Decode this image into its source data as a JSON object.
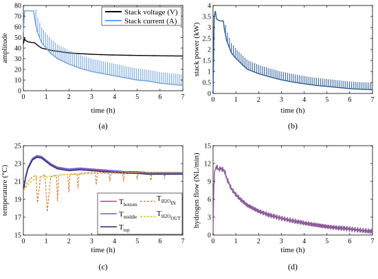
{
  "figure": {
    "panels": [
      "(a)",
      "(b)",
      "(c)",
      "(d)"
    ]
  },
  "chart_data": [
    {
      "panel": "(a)",
      "type": "line",
      "xlabel": "time (h)",
      "ylabel": "amplitude",
      "xlim": [
        0,
        7
      ],
      "ylim": [
        0,
        80
      ],
      "xticks": [
        0,
        1,
        2,
        3,
        4,
        5,
        6,
        7
      ],
      "yticks": [
        0,
        10,
        20,
        30,
        40,
        50,
        60,
        70,
        80
      ],
      "grid": false,
      "legend_position": "top-right",
      "series": [
        {
          "name": "Stack voltage (V)",
          "color": "#000000",
          "x": [
            0,
            0.05,
            0.1,
            0.2,
            0.3,
            0.5,
            0.6,
            0.8,
            1.0,
            1.2,
            1.5,
            2.0,
            2.5,
            3.0,
            3.5,
            4.0,
            4.5,
            5.0,
            5.5,
            6.0,
            6.5,
            7.0
          ],
          "y": [
            44,
            49,
            47,
            46,
            45.5,
            45,
            43,
            40,
            39,
            38,
            37,
            35.5,
            34.8,
            34.2,
            33.8,
            33.5,
            33.3,
            33.1,
            33,
            32.8,
            32.7,
            32.6
          ]
        },
        {
          "name": "Stack current (A)",
          "color": "#6f9fd8",
          "x": [
            0,
            0.05,
            0.1,
            0.2,
            0.3,
            0.45,
            0.5,
            0.6,
            0.8,
            1.0,
            1.2,
            1.5,
            2.0,
            2.5,
            3.0,
            3.5,
            4.0,
            4.5,
            5.0,
            5.5,
            6.0,
            6.5,
            7.0
          ],
          "y": [
            55,
            75,
            75,
            75,
            75,
            75,
            67,
            56,
            45,
            40,
            35,
            30,
            25,
            21,
            18,
            16,
            14,
            12,
            10,
            9,
            7,
            6,
            5
          ],
          "spike_peak_offset": 16
        }
      ]
    },
    {
      "panel": "(b)",
      "type": "line",
      "xlabel": "time (h)",
      "ylabel": "stack power (kW)",
      "xlim": [
        0,
        7
      ],
      "ylim": [
        0,
        4
      ],
      "xticks": [
        0,
        1,
        2,
        3,
        4,
        5,
        6,
        7
      ],
      "yticks": [
        0,
        0.5,
        1,
        1.5,
        2,
        2.5,
        3,
        3.5,
        4
      ],
      "grid": false,
      "series": [
        {
          "color": "#2a5a93",
          "x": [
            0,
            0.05,
            0.1,
            0.15,
            0.2,
            0.3,
            0.45,
            0.5,
            0.6,
            0.8,
            1.0,
            1.2,
            1.5,
            2.0,
            2.5,
            3.0,
            3.5,
            4.0,
            4.5,
            5.0,
            5.5,
            6.0,
            6.5,
            7.0
          ],
          "y": [
            0,
            3.5,
            3.75,
            3.4,
            3.35,
            3.3,
            3.3,
            2.9,
            2.4,
            1.85,
            1.6,
            1.4,
            1.1,
            0.9,
            0.75,
            0.62,
            0.52,
            0.44,
            0.37,
            0.32,
            0.27,
            0.22,
            0.19,
            0.17
          ],
          "spike_peak_offset": 0.5
        }
      ]
    },
    {
      "panel": "(c)",
      "type": "line",
      "xlabel": "time (h)",
      "ylabel": "temperature (°C)",
      "xlim": [
        0,
        7
      ],
      "ylim": [
        15,
        25
      ],
      "xticks": [
        0,
        1,
        2,
        3,
        4,
        5,
        6,
        7
      ],
      "yticks": [
        15,
        17,
        19,
        21,
        23,
        25
      ],
      "grid": false,
      "legend_position": "bottom-right",
      "series": [
        {
          "name_main": "T",
          "name_sub": "bottom",
          "color": "#9b4f96",
          "dash": "solid",
          "x": [
            0,
            0.1,
            0.2,
            0.4,
            0.6,
            0.8,
            1.0,
            1.2,
            1.5,
            2.0,
            2.5,
            3.0,
            3.5,
            4.0,
            4.5,
            5.0,
            5.5,
            6.0,
            6.5,
            7.0
          ],
          "y": [
            20,
            21.5,
            22.5,
            23.5,
            23.8,
            23.7,
            23.3,
            22.9,
            22.5,
            22.3,
            22.4,
            22.3,
            22.2,
            22.1,
            22.0,
            22.0,
            21.9,
            21.9,
            21.9,
            21.9
          ]
        },
        {
          "name_main": "T",
          "name_sub": "middle",
          "color": "#6b5bd3",
          "dash": "solid",
          "x": [
            0,
            0.1,
            0.2,
            0.4,
            0.6,
            0.8,
            1.0,
            1.2,
            1.5,
            2.0,
            2.5,
            3.0,
            3.5,
            4.0,
            4.5,
            5.0,
            5.5,
            6.0,
            6.5,
            7.0
          ],
          "y": [
            20,
            21.6,
            22.6,
            23.6,
            23.9,
            23.8,
            23.4,
            23.0,
            22.6,
            22.4,
            22.5,
            22.4,
            22.3,
            22.2,
            22.1,
            22.1,
            22.0,
            22.0,
            22.0,
            22.0
          ]
        },
        {
          "name_main": "T",
          "name_sub": "top",
          "color": "#1f2a6b",
          "dash": "solid",
          "x": [
            0,
            0.1,
            0.2,
            0.4,
            0.6,
            0.8,
            1.0,
            1.2,
            1.5,
            2.0,
            2.5,
            3.0,
            3.5,
            4.0,
            4.5,
            5.0,
            5.5,
            6.0,
            6.5,
            7.0
          ],
          "y": [
            20,
            21.4,
            22.4,
            23.4,
            23.7,
            23.6,
            23.2,
            22.8,
            22.4,
            22.2,
            22.3,
            22.2,
            22.1,
            22.0,
            21.9,
            21.9,
            21.8,
            21.8,
            21.8,
            21.8
          ]
        },
        {
          "name_main": "T",
          "name_sub": "H2O",
          "name_sub2": "IN",
          "color": "#c9751e",
          "dash": "dashed",
          "x": [
            0,
            0.2,
            0.4,
            0.55,
            0.62,
            0.75,
            0.95,
            1.05,
            1.2,
            1.5,
            2.0,
            2.5,
            3.0,
            3.5,
            4.0,
            4.5,
            5.0,
            5.5,
            6.0,
            6.5,
            7.0
          ],
          "y": [
            20,
            21.0,
            21.5,
            21.7,
            18.5,
            21.5,
            21.8,
            17.6,
            21.5,
            21.7,
            21.8,
            21.9,
            22.0,
            22.0,
            22.0,
            22.0,
            22.0,
            22.0,
            22.0,
            22.0,
            22.0
          ],
          "dips": [
            [
              1.5,
              18.8
            ],
            [
              2.0,
              19.8
            ],
            [
              2.4,
              20.2
            ],
            [
              3.2,
              20.6
            ],
            [
              3.8,
              21.0
            ],
            [
              4.4,
              21.0
            ],
            [
              5.0,
              21.2
            ],
            [
              5.6,
              21.1
            ],
            [
              6.2,
              21.3
            ]
          ]
        },
        {
          "name_main": "T",
          "name_sub": "H2O",
          "name_sub2": "OUT",
          "color": "#c8b400",
          "dash": "dashed",
          "x": [
            0,
            0.2,
            0.4,
            0.6,
            0.8,
            1.0,
            1.2,
            1.5,
            2.0,
            2.5,
            3.0,
            3.5,
            4.0,
            4.5,
            5.0,
            5.5,
            6.0,
            6.5,
            7.0
          ],
          "y": [
            20,
            20.6,
            21.1,
            21.4,
            21.5,
            21.5,
            21.6,
            21.7,
            21.8,
            21.8,
            21.9,
            21.9,
            21.9,
            21.9,
            22.0,
            22.0,
            22.0,
            22.0,
            22.0
          ]
        }
      ]
    },
    {
      "panel": "(d)",
      "type": "line",
      "xlabel": "time (h)",
      "ylabel": "hydrogen flow (NL/min)",
      "xlim": [
        0,
        7
      ],
      "ylim": [
        0,
        15
      ],
      "xticks": [
        0,
        1,
        2,
        3,
        4,
        5,
        6,
        7
      ],
      "yticks": [
        0,
        3,
        6,
        9,
        12,
        15
      ],
      "grid": false,
      "series": [
        {
          "color": "#8a5b99",
          "x": [
            0,
            0.03,
            0.08,
            0.15,
            0.25,
            0.35,
            0.5,
            0.6,
            0.8,
            1.0,
            1.2,
            1.5,
            2.0,
            2.5,
            3.0,
            3.5,
            4.0,
            4.5,
            5.0,
            5.5,
            6.0,
            6.5,
            7.0
          ],
          "y": [
            0,
            8,
            11,
            11.5,
            11,
            11.2,
            10.8,
            9.5,
            7.8,
            6.8,
            6.0,
            5.0,
            4.0,
            3.3,
            2.8,
            2.4,
            2.0,
            1.7,
            1.4,
            1.2,
            1.0,
            0.8,
            0.6
          ],
          "noise_amp": 0.5
        }
      ]
    }
  ]
}
